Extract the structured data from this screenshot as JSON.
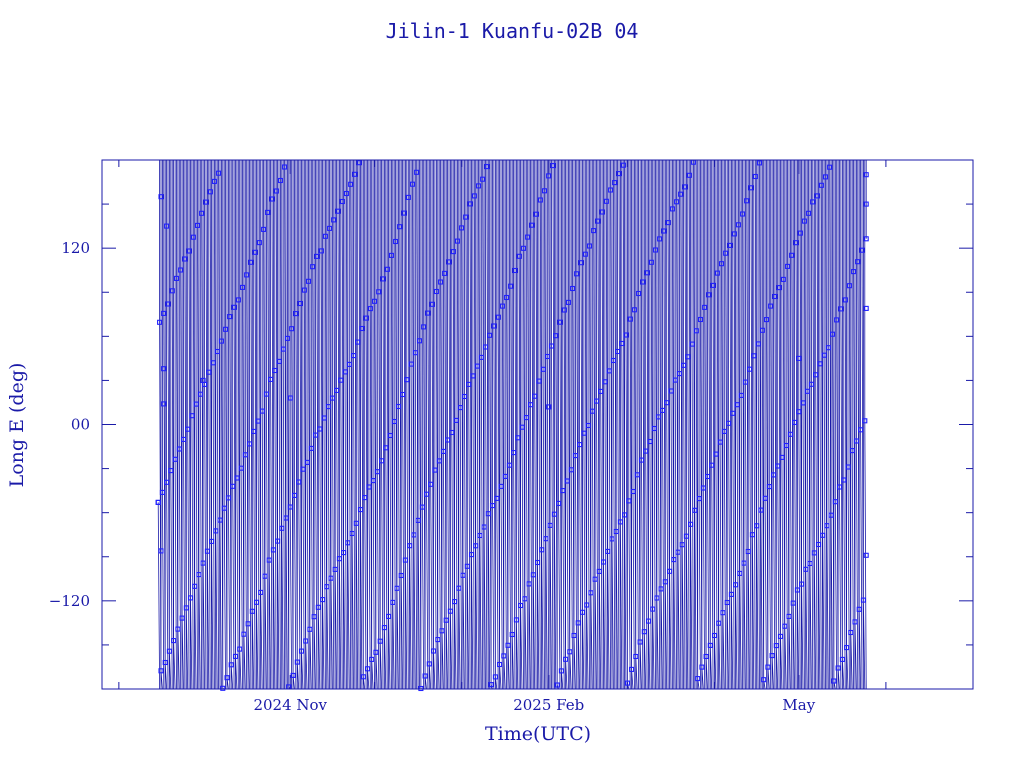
{
  "chart_data": {
    "type": "line",
    "title": "Jilin-1 Kuanfu-02B 04",
    "xlabel": "Time(UTC)",
    "ylabel": "Long E (deg)",
    "x_range": [
      "2024-08-26",
      "2025-07-02"
    ],
    "ylim": [
      -180,
      180
    ],
    "y_ticks": [
      -120,
      0,
      120
    ],
    "x_ticks": [
      {
        "date": "2024-11-01",
        "label": "2024 Nov"
      },
      {
        "date": "2025-02-01",
        "label": "2025 Feb"
      },
      {
        "date": "2025-05-01",
        "label": "May"
      }
    ],
    "x_minor_ticks": [
      "2024-09-01",
      "2024-12-01",
      "2025-01-01",
      "2025-03-01",
      "2025-04-01",
      "2025-06-01"
    ],
    "series": [
      {
        "data_start": "2024-09-15",
        "data_end": "2025-05-25",
        "sample_interval_hours": 12,
        "drift_deg_per_day": 2.2,
        "points": [
          {
            "t": "2024-09-15",
            "lon": -53
          },
          {
            "t": "2024-09-16",
            "lon": -86
          },
          {
            "t": "2024-09-16",
            "lon": 155
          },
          {
            "t": "2024-09-17",
            "lon": 38
          },
          {
            "t": "2024-09-17",
            "lon": 14
          },
          {
            "t": "2024-09-18",
            "lon": 135
          },
          {
            "t": "2024-10-01",
            "lon": 30
          },
          {
            "t": "2024-11-01",
            "lon": 18
          },
          {
            "t": "2025-02-01",
            "lon": 12
          },
          {
            "t": "2025-05-01",
            "lon": 45
          },
          {
            "t": "2025-05-25",
            "lon": 170
          },
          {
            "t": "2025-05-25",
            "lon": 150
          },
          {
            "t": "2025-05-25",
            "lon": 79
          },
          {
            "t": "2025-05-25",
            "lon": -89
          }
        ]
      }
    ],
    "colors": {
      "frame": "#1a1aa8",
      "trace": "#1a1aa8",
      "marker": "#2020ff"
    },
    "grid": false,
    "legend": "none"
  }
}
